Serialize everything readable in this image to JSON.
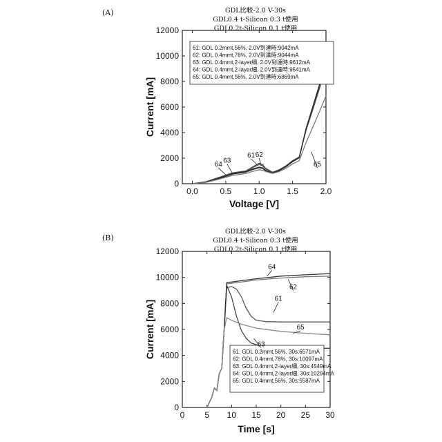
{
  "panels": [
    {
      "label": "(A)",
      "title_lines": [
        "GDL比較-2.0 V-30s",
        "GDL0.4 t-Silicon 0.3 t使用",
        "GDL0.2t-Silicon 0.1 t使用"
      ],
      "chart_data": {
        "type": "line",
        "xlabel": "Voltage [V]",
        "ylabel": "Current [mA]",
        "xlim": [
          -0.15,
          2.0
        ],
        "ylim": [
          0,
          12000
        ],
        "xticks": [
          "0.0",
          "0.5",
          "1.0",
          "1.5",
          "2.0"
        ],
        "yticks": [
          "0",
          "2000",
          "4000",
          "6000",
          "8000",
          "10000",
          "12000"
        ],
        "legend": [
          "61: GDL 0.2mmt,56%, 2.0V到達時:9042mA",
          "62: GDL 0.4mmt,78%, 2.0V到達時:9044mA",
          "63: GDL 0.4mmt,2-layer細, 2.0V到達時:9612mA",
          "64: GDL 0.4mmt,2-layer細, 2.0V到達時:9541mA",
          "65: GDL 0.4mmt,56%, 2.0V到達時:6869mA"
        ],
        "series": [
          {
            "name": "61",
            "color": "#444444",
            "x": [
              0.0,
              0.2,
              0.4,
              0.6,
              0.8,
              0.9,
              1.0,
              1.05,
              1.1,
              1.2,
              1.3,
              1.4,
              1.5,
              1.6,
              1.7,
              1.8,
              1.9,
              2.0
            ],
            "y": [
              0,
              150,
              500,
              850,
              1000,
              1300,
              1600,
              1500,
              1200,
              900,
              1100,
              1400,
              1800,
              2100,
              4200,
              5800,
              7400,
              9042
            ]
          },
          {
            "name": "62",
            "color": "#555555",
            "x": [
              0.0,
              0.2,
              0.4,
              0.6,
              0.8,
              0.9,
              1.0,
              1.05,
              1.1,
              1.2,
              1.3,
              1.4,
              1.5,
              1.6,
              1.7,
              1.8,
              1.9,
              2.0
            ],
            "y": [
              0,
              140,
              480,
              830,
              980,
              1250,
              1500,
              1400,
              1150,
              880,
              1080,
              1380,
              1780,
              2080,
              4150,
              5750,
              7400,
              9044
            ]
          },
          {
            "name": "63",
            "color": "#333333",
            "x": [
              0.0,
              0.2,
              0.4,
              0.6,
              0.8,
              0.9,
              1.0,
              1.05,
              1.1,
              1.2,
              1.3,
              1.4,
              1.5,
              1.6,
              1.7,
              1.8,
              1.9,
              2.0
            ],
            "y": [
              0,
              130,
              450,
              800,
              950,
              1150,
              1300,
              1250,
              1050,
              850,
              1050,
              1350,
              1750,
              2050,
              4300,
              6000,
              7700,
              9612
            ]
          },
          {
            "name": "64",
            "color": "#2a2a2a",
            "x": [
              0.0,
              0.2,
              0.4,
              0.6,
              0.8,
              0.9,
              1.0,
              1.05,
              1.1,
              1.2,
              1.3,
              1.4,
              1.5,
              1.6,
              1.7,
              1.8,
              1.9,
              2.0
            ],
            "y": [
              0,
              120,
              400,
              750,
              900,
              1100,
              1250,
              1200,
              1000,
              820,
              1020,
              1320,
              1720,
              2020,
              4250,
              5950,
              7650,
              9541
            ]
          },
          {
            "name": "65",
            "color": "#777777",
            "x": [
              0.0,
              0.2,
              0.4,
              0.6,
              0.8,
              0.9,
              1.0,
              1.05,
              1.1,
              1.2,
              1.3,
              1.4,
              1.5,
              1.6,
              1.7,
              1.8,
              1.9,
              2.0
            ],
            "y": [
              0,
              100,
              350,
              650,
              800,
              950,
              1100,
              1050,
              950,
              800,
              950,
              1200,
              1550,
              1800,
              3200,
              4400,
              5600,
              6869
            ]
          }
        ],
        "callouts": [
          {
            "text": "64",
            "x": 0.39,
            "y": 1350,
            "tx": 0.5,
            "ty": 700
          },
          {
            "text": "63",
            "x": 0.52,
            "y": 1650,
            "tx": 0.6,
            "ty": 800
          },
          {
            "text": "61",
            "x": 0.88,
            "y": 2050,
            "tx": 0.97,
            "ty": 1500
          },
          {
            "text": "62",
            "x": 1.0,
            "y": 2100,
            "tx": 1.03,
            "ty": 1450
          },
          {
            "text": "65",
            "x": 1.87,
            "y": 1350,
            "tx": 1.78,
            "ty": 2500
          }
        ]
      }
    },
    {
      "label": "(B)",
      "title_lines": [
        "GDL比較-2.0 V-30s",
        "GDL0.4 t-Silicon 0.3 t使用",
        "GDL0.2t-Silicon 0.1 t使用"
      ],
      "chart_data": {
        "type": "line",
        "xlabel": "Time [s]",
        "ylabel": "Current [mA]",
        "xlim": [
          0,
          30
        ],
        "ylim": [
          0,
          12000
        ],
        "xticks": [
          "0",
          "5",
          "10",
          "15",
          "20",
          "25",
          "30"
        ],
        "yticks": [
          "0",
          "2000",
          "4000",
          "6000",
          "8000",
          "10000",
          "12000"
        ],
        "legend": [
          "61: GDL 0.2mmt,56%, 30s:6571mA",
          "62: GDL 0.4mmt,78%, 30s:10097mA",
          "63: GDL 0.4mmt,2-layer細, 30s:4549mA",
          "64: GDL 0.4mmt,2-layer細, 30s:10294mA",
          "65: GDL 0.4mmt,56%, 30s:5587mA"
        ],
        "series": [
          {
            "name": "61",
            "color": "#555555",
            "x": [
              5,
              6,
              6.5,
              7,
              7.5,
              8,
              8.5,
              9,
              10,
              11,
              12,
              13,
              14,
              15,
              17,
              20,
              25,
              30
            ],
            "y": [
              0,
              800,
              1500,
              1300,
              2600,
              3000,
              6000,
              9200,
              9300,
              9100,
              8500,
              7600,
              7000,
              6700,
              6600,
              6571,
              6571,
              6571
            ]
          },
          {
            "name": "62",
            "color": "#777777",
            "x": [
              5,
              6,
              6.5,
              7,
              7.5,
              8,
              8.5,
              9,
              10,
              12,
              15,
              20,
              25,
              30
            ],
            "y": [
              0,
              800,
              1500,
              1300,
              2600,
              3000,
              6000,
              9500,
              9550,
              9650,
              9800,
              9950,
              10050,
              10097
            ]
          },
          {
            "name": "63",
            "color": "#444444",
            "x": [
              5,
              6,
              6.5,
              7,
              7.5,
              8,
              8.5,
              9,
              10,
              11,
              12,
              13,
              14,
              16,
              20,
              25,
              30
            ],
            "y": [
              0,
              800,
              1500,
              1300,
              2600,
              3000,
              6000,
              9400,
              8500,
              7000,
              5900,
              5300,
              4950,
              4700,
              4600,
              4560,
              4549
            ]
          },
          {
            "name": "64",
            "color": "#333333",
            "x": [
              5,
              6,
              6.5,
              7,
              7.5,
              8,
              8.5,
              9,
              10,
              12,
              15,
              20,
              25,
              30
            ],
            "y": [
              0,
              800,
              1500,
              1300,
              2600,
              3000,
              6000,
              9600,
              9650,
              9750,
              9900,
              10100,
              10200,
              10294
            ]
          },
          {
            "name": "65",
            "color": "#888888",
            "x": [
              5,
              6,
              6.5,
              7,
              7.5,
              8,
              8.5,
              9,
              10,
              12,
              15,
              20,
              25,
              30
            ],
            "y": [
              0,
              800,
              1500,
              1300,
              2600,
              3000,
              6000,
              6900,
              6700,
              6400,
              6100,
              5850,
              5700,
              5587
            ]
          }
        ],
        "callouts": [
          {
            "text": "64",
            "x": 18.2,
            "y": 10650,
            "tx": 17.2,
            "ty": 10100
          },
          {
            "text": "62",
            "x": 22.5,
            "y": 9100,
            "tx": 21.5,
            "ty": 9850
          },
          {
            "text": "61",
            "x": 19.5,
            "y": 8200,
            "tx": 18.5,
            "ty": 7300
          },
          {
            "text": "65",
            "x": 24.0,
            "y": 6000,
            "tx": 22.5,
            "ty": 5700
          },
          {
            "text": "63",
            "x": 16.0,
            "y": 4700,
            "tx": 14.5,
            "ty": 5300
          }
        ]
      }
    }
  ]
}
